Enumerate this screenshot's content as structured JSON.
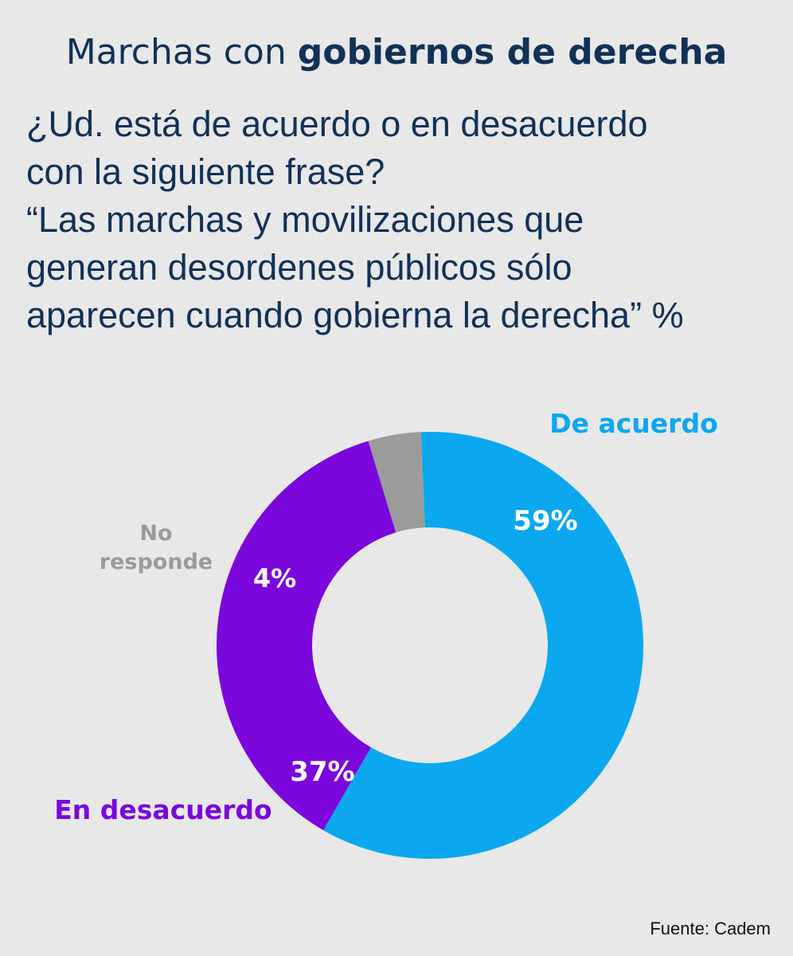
{
  "title": {
    "regular": "Marchas con",
    "bold": "gobiernos de derecha"
  },
  "question_lines": [
    "¿Ud. está de acuerdo o en desacuerdo",
    "con la siguiente frase?",
    "“Las marchas y movilizaciones que",
    "generan desordenes públicos sólo",
    "aparecen cuando gobierna la derecha” %"
  ],
  "source": "Fuente: Cadem",
  "colors": {
    "de_acuerdo": "#0ba8ef",
    "en_desacuerdo": "#7b07dd",
    "no_responde": "#9b9b9b",
    "title_text": "#123157",
    "background": "#e8e8e9"
  },
  "chart_data": {
    "type": "pie",
    "donut": true,
    "categories": [
      "De acuerdo",
      "En desacuerdo",
      "No responde"
    ],
    "values": [
      59,
      37,
      4
    ],
    "value_labels": [
      "59%",
      "37%",
      "4%"
    ],
    "category_labels": [
      [
        "De acuerdo"
      ],
      [
        "En desacuerdo"
      ],
      [
        "No",
        "responde"
      ]
    ],
    "unit": "%"
  }
}
